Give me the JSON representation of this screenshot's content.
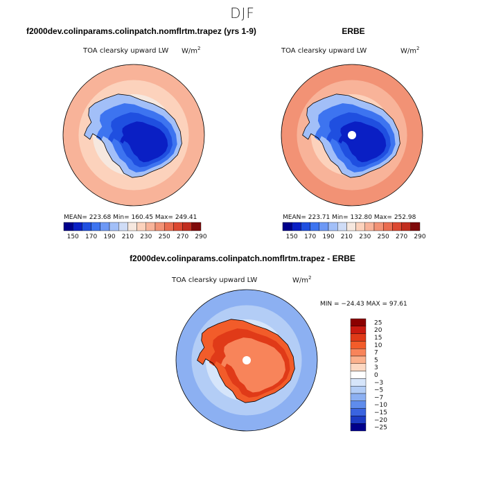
{
  "season": "DJF",
  "panel_left": {
    "title": "f2000dev.colinparams.colinpatch.nomflrtm.trapez (yrs 1-9)",
    "field": "TOA clearsky upward LW",
    "units": "W/m",
    "units_exp": "2",
    "stats": "MEAN= 223.68   Min= 160.45   Max= 249.41"
  },
  "panel_right": {
    "title": "ERBE",
    "field": "TOA clearsky upward LW",
    "units": "W/m",
    "units_exp": "2",
    "stats": "MEAN= 223.71   Min= 132.80   Max= 252.98"
  },
  "panel_diff": {
    "title": "f2000dev.colinparams.colinpatch.nomflrtm.trapez - ERBE",
    "field": "TOA clearsky upward LW",
    "units": "W/m",
    "units_exp": "2",
    "stats": "MIN = −24.43 MAX =  97.61"
  },
  "chart_data": [
    {
      "type": "heatmap",
      "name": "model",
      "projection": "south-polar-stereographic",
      "title": "f2000dev.colinparams.colinpatch.nomflrtm.trapez (yrs 1-9)",
      "variable": "TOA clearsky upward LW",
      "units": "W/m2",
      "mean": 223.68,
      "min": 160.45,
      "max": 249.41,
      "colorbar_levels": [
        150,
        160,
        170,
        180,
        190,
        200,
        210,
        220,
        230,
        240,
        250,
        260,
        270,
        280,
        290
      ],
      "colorbar_labels": [
        "150",
        "170",
        "190",
        "210",
        "230",
        "250",
        "270",
        "290"
      ]
    },
    {
      "type": "heatmap",
      "name": "observations",
      "projection": "south-polar-stereographic",
      "title": "ERBE",
      "variable": "TOA clearsky upward LW",
      "units": "W/m2",
      "mean": 223.71,
      "min": 132.8,
      "max": 252.98,
      "colorbar_levels": [
        150,
        160,
        170,
        180,
        190,
        200,
        210,
        220,
        230,
        240,
        250,
        260,
        270,
        280,
        290
      ],
      "colorbar_labels": [
        "150",
        "170",
        "190",
        "210",
        "230",
        "250",
        "270",
        "290"
      ]
    },
    {
      "type": "heatmap",
      "name": "difference",
      "projection": "south-polar-stereographic",
      "title": "f2000dev.colinparams.colinpatch.nomflrtm.trapez - ERBE",
      "variable": "TOA clearsky upward LW",
      "units": "W/m2",
      "min": -24.43,
      "max": 97.61,
      "colorbar_levels": [
        25,
        20,
        15,
        10,
        7,
        5,
        3,
        0,
        -3,
        -5,
        -7,
        -10,
        -15,
        -20,
        -25
      ],
      "colorbar_labels": [
        "25",
        "20",
        "15",
        "10",
        "7",
        "5",
        "3",
        "0",
        "−3",
        "−5",
        "−7",
        "−10",
        "−15",
        "−20",
        "−25"
      ]
    }
  ],
  "colors": {
    "seq_palette": [
      "#00008b",
      "#0a1fc4",
      "#1f4fe0",
      "#3d74f0",
      "#6d98f5",
      "#a2bff8",
      "#cfdcf6",
      "#f6e8df",
      "#fcd2bc",
      "#f8b399",
      "#f29275",
      "#ea6d50",
      "#dc4830",
      "#c12e1f",
      "#7f0a0a"
    ],
    "diff_palette": [
      "#8b0000",
      "#c91a10",
      "#e03a18",
      "#f25c2a",
      "#f8845a",
      "#fbb08c",
      "#fcd8c2",
      "#ffffff",
      "#d6e5fa",
      "#b3cdf6",
      "#8cb0f2",
      "#5f8cec",
      "#3a64e0",
      "#1c3bc4",
      "#00008b"
    ]
  }
}
